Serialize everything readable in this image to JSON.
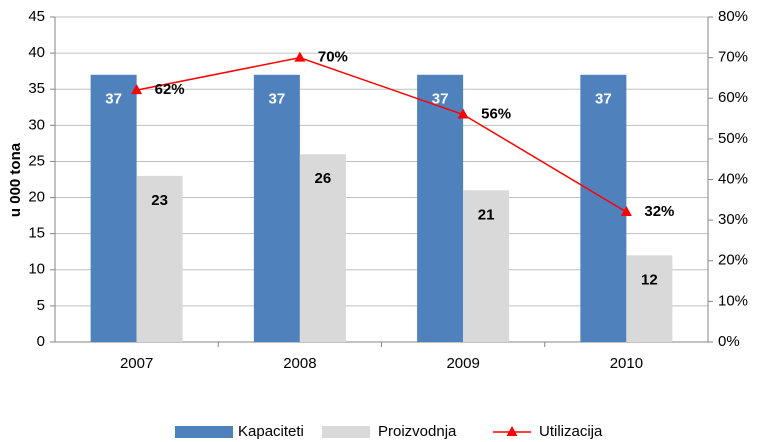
{
  "chart_data": {
    "type": "bar",
    "categories": [
      "2007",
      "2008",
      "2009",
      "2010"
    ],
    "y_label": "u 000 tona",
    "ylim": [
      0,
      45
    ],
    "yticks": [
      0,
      5,
      10,
      15,
      20,
      25,
      30,
      35,
      40,
      45
    ],
    "y2lim": [
      0,
      80
    ],
    "y2ticks": [
      {
        "value": 0,
        "label": "0%"
      },
      {
        "value": 10,
        "label": "10%"
      },
      {
        "value": 20,
        "label": "20%"
      },
      {
        "value": 30,
        "label": "30%"
      },
      {
        "value": 40,
        "label": "40%"
      },
      {
        "value": 50,
        "label": "50%"
      },
      {
        "value": 60,
        "label": "60%"
      },
      {
        "value": 70,
        "label": "70%"
      },
      {
        "value": 80,
        "label": "80%"
      }
    ],
    "grid": true,
    "legend": "bottom",
    "series": [
      {
        "name": "Kapaciteti",
        "color": "#4f81bd",
        "values": [
          37,
          37,
          37,
          37
        ]
      },
      {
        "name": "Proizvodnja",
        "color": "#d9d9d9",
        "values": [
          23,
          26,
          21,
          12
        ]
      },
      {
        "name": "Utilizacija",
        "color": "#ff0000",
        "type": "line",
        "axis": "y2",
        "values": [
          62,
          70,
          56,
          32
        ],
        "value_labels": [
          "62%",
          "70%",
          "56%",
          "32%"
        ]
      }
    ]
  }
}
